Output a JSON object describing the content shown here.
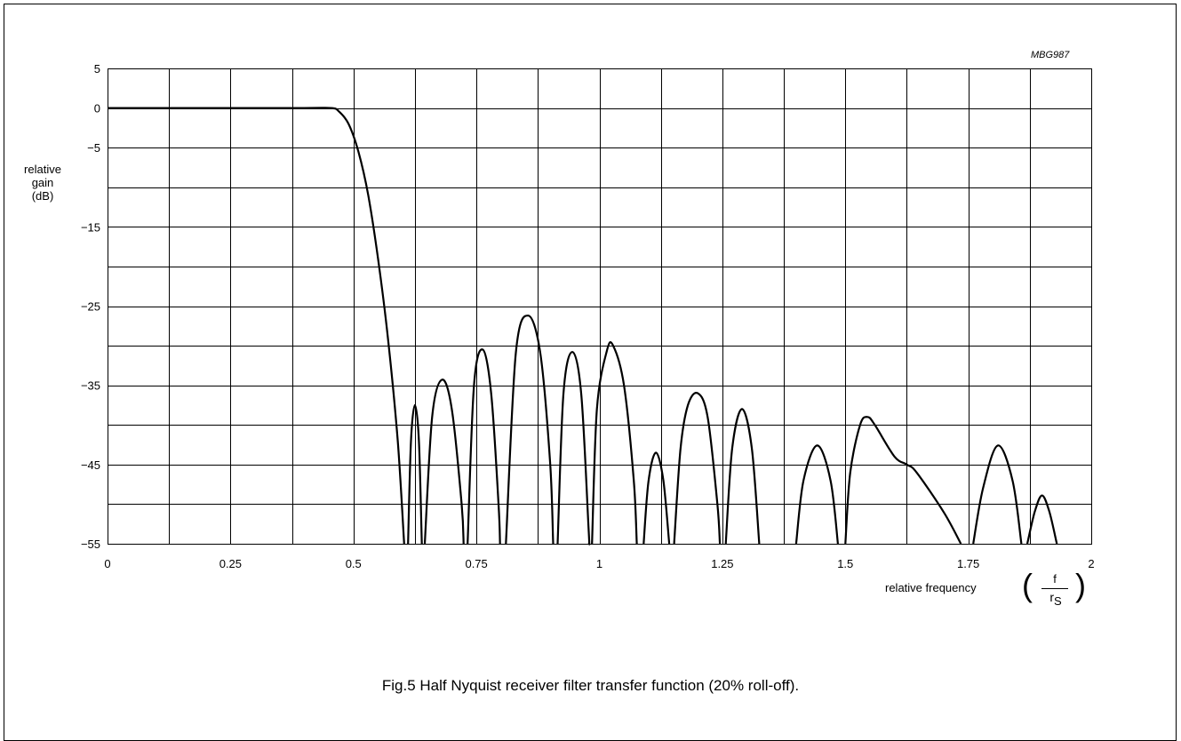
{
  "figure_code": "MBG987",
  "caption": "Fig.5  Half Nyquist receiver filter transfer function (20% roll-off).",
  "chart_data": {
    "type": "line",
    "title": "",
    "ylabel_lines": [
      "relative",
      "gain",
      "(dB)"
    ],
    "xlabel": "relative frequency",
    "xlabel_unit": {
      "numerator": "f",
      "denominator_main": "r",
      "denominator_sub": "S"
    },
    "xlim": [
      0,
      2
    ],
    "ylim": [
      -55,
      5
    ],
    "x_ticks": [
      0,
      0.25,
      0.5,
      0.75,
      1,
      1.25,
      1.5,
      1.75,
      2
    ],
    "x_tick_labels": [
      "0",
      "0.25",
      "0.5",
      "0.75",
      "1",
      "1.25",
      "1.5",
      "1.75",
      "2"
    ],
    "y_ticks": [
      5,
      0,
      -5,
      -15,
      -25,
      -35,
      -45,
      -55
    ],
    "y_tick_labels": [
      "5",
      "0",
      "−5",
      "−15",
      "−25",
      "−35",
      "−45",
      "−55"
    ],
    "grid": {
      "x_step": 0.125,
      "y_step": 5
    },
    "series": [
      {
        "segments": [
          [
            [
              0,
              0
            ],
            [
              0.2,
              0
            ],
            [
              0.4,
              0
            ],
            [
              0.455,
              0
            ],
            [
              0.47,
              -0.4
            ],
            [
              0.49,
              -2.0
            ],
            [
              0.51,
              -5.5
            ],
            [
              0.53,
              -11
            ],
            [
              0.55,
              -19
            ],
            [
              0.57,
              -29
            ],
            [
              0.59,
              -42
            ],
            [
              0.603,
              -55
            ]
          ],
          [
            [
              0.611,
              -55
            ],
            [
              0.617,
              -42
            ],
            [
              0.625,
              -37.5
            ],
            [
              0.633,
              -42
            ],
            [
              0.639,
              -55
            ]
          ],
          [
            [
              0.645,
              -55
            ],
            [
              0.66,
              -39
            ],
            [
              0.68,
              -34.3
            ],
            [
              0.7,
              -38
            ],
            [
              0.72,
              -50
            ],
            [
              0.724,
              -55
            ]
          ],
          [
            [
              0.732,
              -55
            ],
            [
              0.745,
              -35
            ],
            [
              0.763,
              -30.5
            ],
            [
              0.78,
              -36
            ],
            [
              0.795,
              -50
            ],
            [
              0.798,
              -55
            ]
          ],
          [
            [
              0.81,
              -55
            ],
            [
              0.83,
              -31
            ],
            [
              0.855,
              -26.2
            ],
            [
              0.88,
              -31
            ],
            [
              0.9,
              -45
            ],
            [
              0.906,
              -55
            ]
          ],
          [
            [
              0.915,
              -55
            ],
            [
              0.927,
              -36
            ],
            [
              0.945,
              -30.8
            ],
            [
              0.963,
              -36
            ],
            [
              0.978,
              -53
            ],
            [
              0.979,
              -55
            ]
          ],
          [
            [
              0.985,
              -55
            ],
            [
              0.995,
              -38
            ],
            [
              1.015,
              -30.7
            ],
            [
              1.028,
              -30.0
            ],
            [
              1.05,
              -35
            ],
            [
              1.07,
              -47
            ],
            [
              1.076,
              -55
            ]
          ],
          [
            [
              1.09,
              -55
            ],
            [
              1.1,
              -47
            ],
            [
              1.115,
              -43.5
            ],
            [
              1.13,
              -47
            ],
            [
              1.142,
              -55
            ]
          ],
          [
            [
              1.152,
              -55
            ],
            [
              1.165,
              -43
            ],
            [
              1.18,
              -37.5
            ],
            [
              1.2,
              -36
            ],
            [
              1.22,
              -39
            ],
            [
              1.24,
              -50
            ],
            [
              1.245,
              -55
            ]
          ],
          [
            [
              1.257,
              -55
            ],
            [
              1.27,
              -43
            ],
            [
              1.29,
              -38
            ],
            [
              1.31,
              -43
            ],
            [
              1.325,
              -55
            ]
          ],
          [
            [
              1.4,
              -55
            ],
            [
              1.415,
              -47
            ],
            [
              1.443,
              -42.6
            ],
            [
              1.47,
              -47
            ],
            [
              1.485,
              -55
            ]
          ],
          [
            [
              1.5,
              -55
            ],
            [
              1.51,
              -46
            ],
            [
              1.53,
              -40
            ],
            [
              1.545,
              -39
            ],
            [
              1.56,
              -40
            ],
            [
              1.6,
              -44
            ],
            [
              1.625,
              -45
            ],
            [
              1.645,
              -46
            ],
            [
              1.7,
              -51
            ],
            [
              1.735,
              -55
            ]
          ],
          [
            [
              1.76,
              -55
            ],
            [
              1.78,
              -48
            ],
            [
              1.81,
              -42.6
            ],
            [
              1.84,
              -47
            ],
            [
              1.858,
              -55
            ]
          ],
          [
            [
              1.87,
              -55
            ],
            [
              1.885,
              -51
            ],
            [
              1.9,
              -48.9
            ],
            [
              1.915,
              -51
            ],
            [
              1.93,
              -55
            ]
          ]
        ]
      }
    ]
  }
}
